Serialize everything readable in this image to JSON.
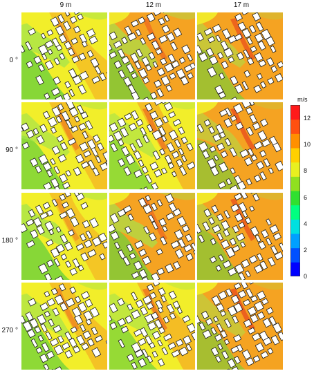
{
  "columns": [
    "9 m",
    "12 m",
    "17 m"
  ],
  "rows": [
    "0 °",
    "90 °",
    "180 °",
    "270 °"
  ],
  "colorbar": {
    "unit": "m/s",
    "ticks": [
      "12",
      "10",
      "8",
      "6",
      "4",
      "2",
      "0"
    ],
    "min": 0,
    "max": 13,
    "colors": [
      "#0000ff",
      "#0050ff",
      "#00a0ff",
      "#00e0e0",
      "#00ff80",
      "#30e030",
      "#90e020",
      "#e8f020",
      "#ffd000",
      "#ff9000",
      "#ff5010",
      "#ff1a1a"
    ]
  },
  "palette": {
    "green": "#6fd23a",
    "green_light": "#a7e44a",
    "yellow": "#f2ee2a",
    "orange": "#f5a322",
    "orange_dark": "#ef7f18",
    "red": "#e83a1c",
    "building_fill": "#ffffff",
    "building_stroke": "#1a1a1a"
  },
  "panels": [
    {
      "row": 0,
      "col": 0,
      "base": "yellow",
      "level": 0.3
    },
    {
      "row": 0,
      "col": 1,
      "base": "orange",
      "level": 0.45
    },
    {
      "row": 0,
      "col": 2,
      "base": "orange",
      "level": 0.65
    },
    {
      "row": 1,
      "col": 0,
      "base": "yellow",
      "level": 0.4
    },
    {
      "row": 1,
      "col": 1,
      "base": "yellow",
      "level": 0.5
    },
    {
      "row": 1,
      "col": 2,
      "base": "orange",
      "level": 0.7
    },
    {
      "row": 2,
      "col": 0,
      "base": "yellow",
      "level": 0.3
    },
    {
      "row": 2,
      "col": 1,
      "base": "orange",
      "level": 0.45
    },
    {
      "row": 2,
      "col": 2,
      "base": "orange",
      "level": 0.65
    },
    {
      "row": 3,
      "col": 0,
      "base": "yellow",
      "level": 0.4
    },
    {
      "row": 3,
      "col": 1,
      "base": "yellow",
      "level": 0.5
    },
    {
      "row": 3,
      "col": 2,
      "base": "orange",
      "level": 0.7
    }
  ]
}
